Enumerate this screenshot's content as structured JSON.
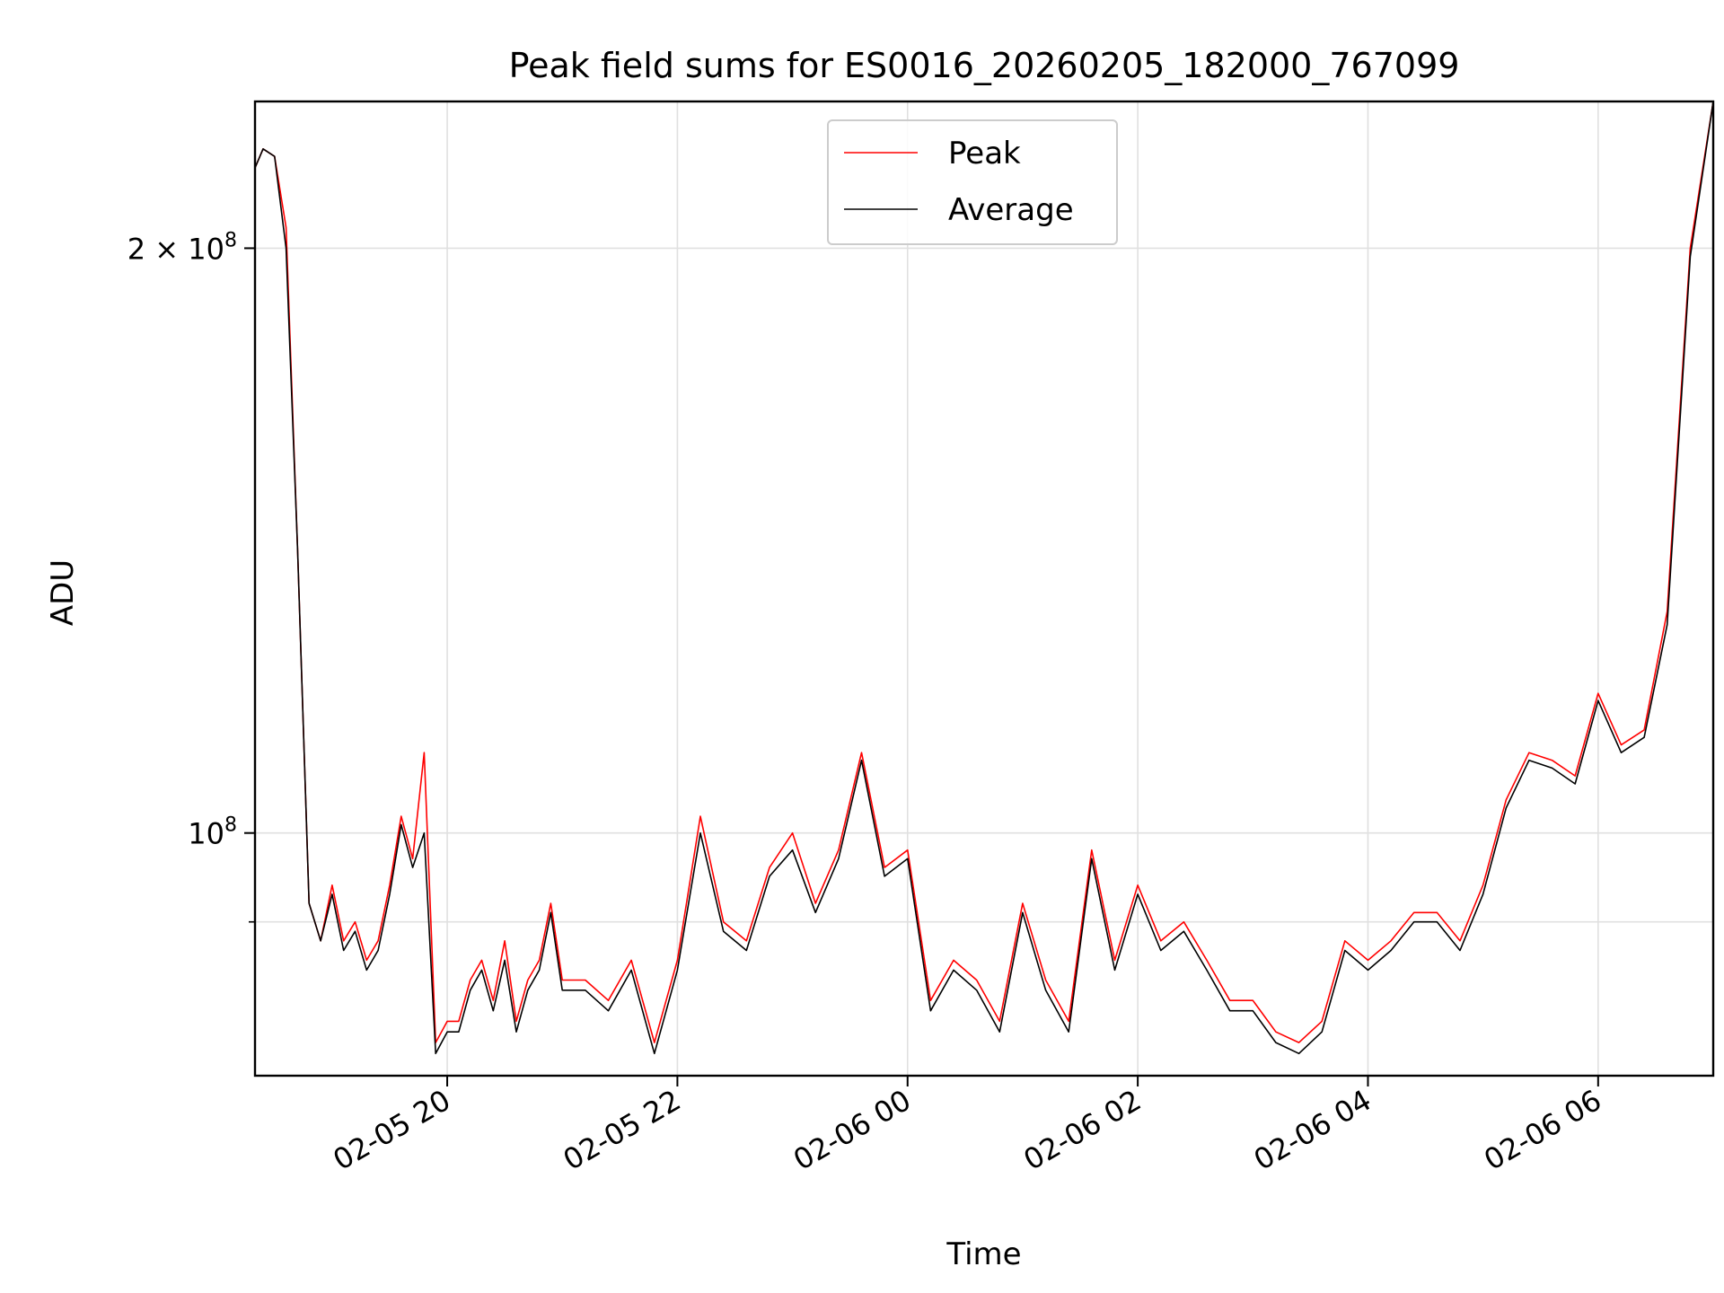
{
  "chart_data": {
    "type": "line",
    "title": "Peak field sums for ES0016_20260205_182000_767099",
    "xlabel": "Time",
    "ylabel": "ADU",
    "yscale": "log",
    "xlim_hours": [
      18.33,
      31.0
    ],
    "ylim": [
      75000000,
      238000000
    ],
    "grid": true,
    "legend_location": "upper center",
    "x_ticks": [
      {
        "hour": 20,
        "label": "02-05 20"
      },
      {
        "hour": 22,
        "label": "02-05 22"
      },
      {
        "hour": 24,
        "label": "02-06 00"
      },
      {
        "hour": 26,
        "label": "02-06 02"
      },
      {
        "hour": 28,
        "label": "02-06 04"
      },
      {
        "hour": 30,
        "label": "02-06 06"
      }
    ],
    "y_major_ticks": [
      {
        "value": 100000000,
        "label": "10",
        "exponent": "8"
      },
      {
        "value": 200000000,
        "label": "2 × 10",
        "exponent": "8"
      }
    ],
    "y_minor_ticks": [
      90000000
    ],
    "x_hours": [
      18.33,
      18.4,
      18.5,
      18.6,
      18.7,
      18.8,
      18.9,
      19.0,
      19.1,
      19.2,
      19.3,
      19.4,
      19.5,
      19.6,
      19.7,
      19.8,
      19.9,
      20.0,
      20.1,
      20.2,
      20.3,
      20.4,
      20.5,
      20.6,
      20.7,
      20.8,
      20.9,
      21.0,
      21.2,
      21.4,
      21.6,
      21.8,
      22.0,
      22.2,
      22.4,
      22.6,
      22.8,
      23.0,
      23.2,
      23.4,
      23.6,
      23.8,
      24.0,
      24.2,
      24.4,
      24.6,
      24.8,
      25.0,
      25.2,
      25.4,
      25.6,
      25.8,
      26.0,
      26.2,
      26.4,
      26.6,
      26.8,
      27.0,
      27.2,
      27.4,
      27.6,
      27.8,
      28.0,
      28.2,
      28.4,
      28.6,
      28.8,
      29.0,
      29.2,
      29.4,
      29.6,
      29.8,
      30.0,
      30.2,
      30.4,
      30.6,
      30.8,
      31.0
    ],
    "series": [
      {
        "name": "Peak",
        "color": "#ff0000",
        "values": [
          220000000.0,
          225000000.0,
          223000000.0,
          205000000.0,
          140000000.0,
          92000000.0,
          88000000.0,
          94000000.0,
          88000000.0,
          90000000.0,
          86000000.0,
          88000000.0,
          94000000.0,
          102000000.0,
          97000000.0,
          110000000.0,
          78000000.0,
          80000000.0,
          80000000.0,
          84000000.0,
          86000000.0,
          82000000.0,
          88000000.0,
          80000000.0,
          84000000.0,
          86000000.0,
          92000000.0,
          84000000.0,
          84000000.0,
          82000000.0,
          86000000.0,
          78000000.0,
          86000000.0,
          102000000.0,
          90000000.0,
          88000000.0,
          96000000.0,
          100000000.0,
          92000000.0,
          98000000.0,
          110000000.0,
          96000000.0,
          98000000.0,
          82000000.0,
          86000000.0,
          84000000.0,
          80000000.0,
          92000000.0,
          84000000.0,
          80000000.0,
          98000000.0,
          86000000.0,
          94000000.0,
          88000000.0,
          90000000.0,
          86000000.0,
          82000000.0,
          82000000.0,
          79000000.0,
          78000000.0,
          80000000.0,
          88000000.0,
          86000000.0,
          88000000.0,
          91000000.0,
          91000000.0,
          88000000.0,
          94000000.0,
          104000000.0,
          110000000.0,
          109000000.0,
          107000000.0,
          118000000.0,
          111000000.0,
          113000000.0,
          130000000.0,
          200000000.0,
          238000000.0
        ]
      },
      {
        "name": "Average",
        "color": "#000000",
        "values": [
          220000000.0,
          225000000.0,
          223000000.0,
          200000000.0,
          140000000.0,
          92000000.0,
          88000000.0,
          93000000.0,
          87000000.0,
          89000000.0,
          85000000.0,
          87000000.0,
          93000000.0,
          101000000.0,
          96000000.0,
          100000000.0,
          77000000.0,
          79000000.0,
          79000000.0,
          83000000.0,
          85000000.0,
          81000000.0,
          86000000.0,
          79000000.0,
          83000000.0,
          85000000.0,
          91000000.0,
          83000000.0,
          83000000.0,
          81000000.0,
          85000000.0,
          77000000.0,
          85000000.0,
          100000000.0,
          89000000.0,
          87000000.0,
          95000000.0,
          98000000.0,
          91000000.0,
          97000000.0,
          109000000.0,
          95000000.0,
          97000000.0,
          81000000.0,
          85000000.0,
          83000000.0,
          79000000.0,
          91000000.0,
          83000000.0,
          79000000.0,
          97000000.0,
          85000000.0,
          93000000.0,
          87000000.0,
          89000000.0,
          85000000.0,
          81000000.0,
          81000000.0,
          78000000.0,
          77000000.0,
          79000000.0,
          87000000.0,
          85000000.0,
          87000000.0,
          90000000.0,
          90000000.0,
          87000000.0,
          93000000.0,
          103000000.0,
          109000000.0,
          108000000.0,
          106000000.0,
          117000000.0,
          110000000.0,
          112000000.0,
          128000000.0,
          198000000.0,
          238000000.0
        ]
      }
    ]
  }
}
